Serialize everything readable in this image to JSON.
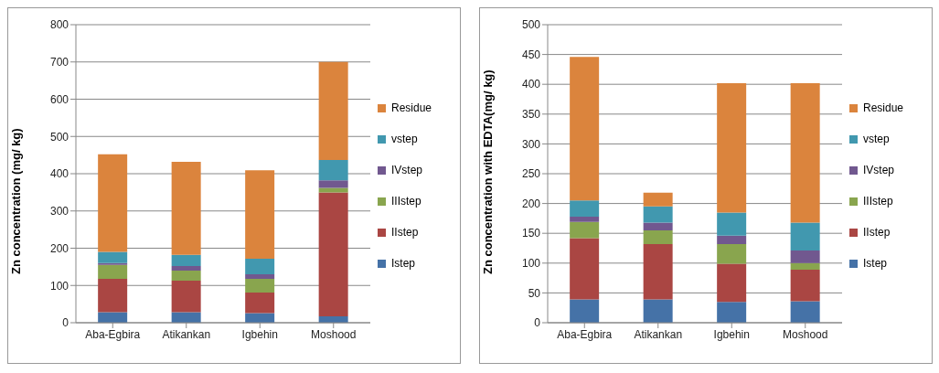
{
  "chart_data": [
    {
      "type": "bar",
      "stacked": true,
      "ylabel": "Zn concentration (mg/ kg)",
      "categories": [
        "Aba-Egbira",
        "Atikankan",
        "Igbehin",
        "Moshood"
      ],
      "ylim": [
        0,
        800
      ],
      "yticks": [
        0,
        100,
        200,
        300,
        400,
        500,
        600,
        700,
        800
      ],
      "grid": "y",
      "legend": "right",
      "series": [
        {
          "name": "Istep",
          "color": "#4572a7",
          "values": [
            28,
            28,
            26,
            17
          ]
        },
        {
          "name": "IIstep",
          "color": "#aa4643",
          "values": [
            90,
            85,
            55,
            333
          ]
        },
        {
          "name": "IIIstep",
          "color": "#89a54e",
          "values": [
            37,
            27,
            37,
            12
          ]
        },
        {
          "name": "IVstep",
          "color": "#71588f",
          "values": [
            5,
            12,
            12,
            20
          ]
        },
        {
          "name": "vstep",
          "color": "#4198af",
          "values": [
            30,
            30,
            42,
            55
          ]
        },
        {
          "name": "Residue",
          "color": "#db843d",
          "values": [
            262,
            250,
            237,
            263
          ]
        }
      ]
    },
    {
      "type": "bar",
      "stacked": true,
      "ylabel": "Zn concentration  with EDTA(mg/ kg)",
      "categories": [
        "Aba-Egbira",
        "Atikankan",
        "Igbehin",
        "Moshood"
      ],
      "ylim": [
        0,
        500
      ],
      "yticks": [
        0,
        50,
        100,
        150,
        200,
        250,
        300,
        350,
        400,
        450,
        500
      ],
      "grid": "y",
      "legend": "right",
      "series": [
        {
          "name": "Istep",
          "color": "#4572a7",
          "values": [
            39,
            39,
            35,
            36
          ]
        },
        {
          "name": "IIstep",
          "color": "#aa4643",
          "values": [
            103,
            93,
            64,
            53
          ]
        },
        {
          "name": "IIIstep",
          "color": "#89a54e",
          "values": [
            27,
            23,
            33,
            11
          ]
        },
        {
          "name": "IVstep",
          "color": "#71588f",
          "values": [
            9,
            13,
            14,
            21
          ]
        },
        {
          "name": "vstep",
          "color": "#4198af",
          "values": [
            27,
            27,
            39,
            47
          ]
        },
        {
          "name": "Residue",
          "color": "#db843d",
          "values": [
            241,
            23,
            217,
            234
          ]
        }
      ]
    }
  ]
}
